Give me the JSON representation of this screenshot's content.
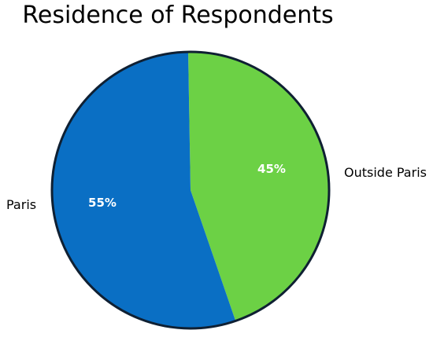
{
  "chart_data": {
    "type": "pie",
    "title": "Residence of Respondents",
    "slices": [
      {
        "label": "Outside Paris",
        "value": 45,
        "value_label": "45%",
        "color": "#6cd145"
      },
      {
        "label": "Paris",
        "value": 55,
        "value_label": "55%",
        "color": "#0a6fc4"
      }
    ],
    "start_angle": "top (12 o'clock), clockwise",
    "outline_color": "#0f2033",
    "legend": "none (labels beside slices)"
  }
}
